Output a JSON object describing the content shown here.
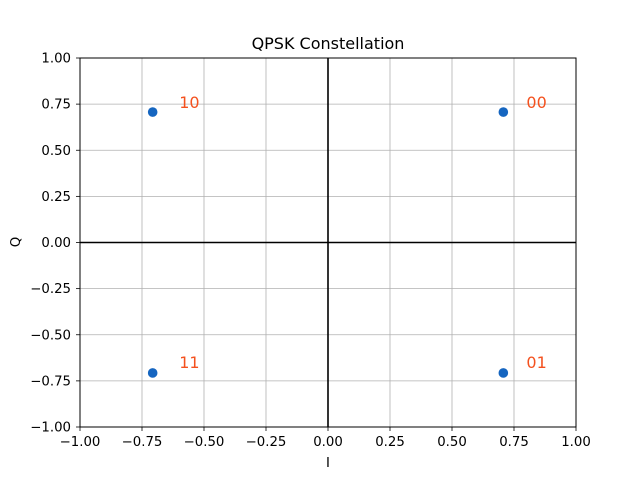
{
  "chart_data": {
    "type": "scatter",
    "title": "QPSK Constellation",
    "xlabel": "I",
    "ylabel": "Q",
    "xlim": [
      -1.0,
      1.0
    ],
    "ylim": [
      -1.0,
      1.0
    ],
    "grid": true,
    "x_ticks": [
      -1.0,
      -0.75,
      -0.5,
      -0.25,
      0.0,
      0.25,
      0.5,
      0.75,
      1.0
    ],
    "x_tick_labels": [
      "−1.00",
      "−0.75",
      "−0.50",
      "−0.25",
      "0.00",
      "0.25",
      "0.50",
      "0.75",
      "1.00"
    ],
    "y_ticks": [
      1.0,
      0.75,
      0.5,
      0.25,
      0.0,
      -0.25,
      -0.5,
      -0.75,
      -1.0
    ],
    "y_tick_labels": [
      "1.00",
      "0.75",
      "0.50",
      "0.25",
      "0.00",
      "−0.25",
      "−0.50",
      "−0.75",
      "−1.00"
    ],
    "reference_lines": {
      "x": 0.0,
      "y": 0.0,
      "color": "#000000"
    },
    "series": [
      {
        "name": "symbols",
        "color": "#1565c0",
        "points": [
          {
            "x": 0.707,
            "y": 0.707
          },
          {
            "x": -0.707,
            "y": 0.707
          },
          {
            "x": -0.707,
            "y": -0.707
          },
          {
            "x": 0.707,
            "y": -0.707
          }
        ]
      }
    ],
    "annotations": [
      {
        "text": "00",
        "x": 0.8,
        "y": 0.73
      },
      {
        "text": "10",
        "x": -0.6,
        "y": 0.73
      },
      {
        "text": "11",
        "x": -0.6,
        "y": -0.68
      },
      {
        "text": "01",
        "x": 0.8,
        "y": -0.68
      }
    ],
    "annotation_color": "#f4511e",
    "grid_color": "#b0b0b0"
  }
}
